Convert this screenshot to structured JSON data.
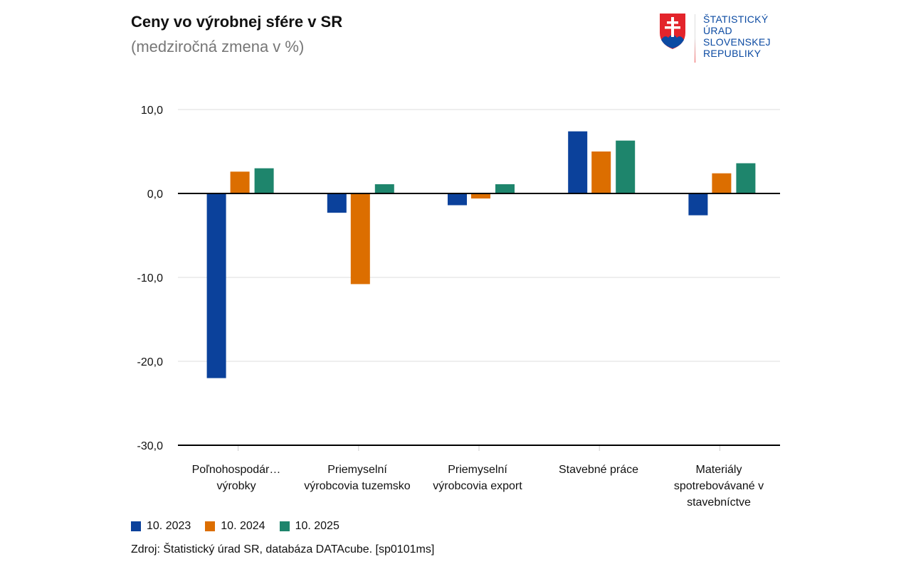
{
  "chart_data": {
    "type": "bar",
    "title": "Ceny vo výrobnej sfére v SR",
    "subtitle": "(medziročná zmena v %)",
    "categories": [
      "Poľnohospodár… výrobky",
      "Priemyselní výrobcovia tuzemsko",
      "Priemyselní výrobcovia export",
      "Stavebné práce",
      "Materiály spotrebovávané v stavebníctve"
    ],
    "series": [
      {
        "name": "10. 2023",
        "color": "#0b419b",
        "values": [
          -22.0,
          -2.3,
          -1.4,
          7.4,
          -2.6
        ]
      },
      {
        "name": "10. 2024",
        "color": "#dc6e00",
        "values": [
          2.6,
          -10.8,
          -0.6,
          5.0,
          2.4
        ]
      },
      {
        "name": "10. 2025",
        "color": "#1e856c",
        "values": [
          3.0,
          1.1,
          1.1,
          6.3,
          3.6
        ]
      }
    ],
    "yticks": [
      "10,0",
      "0,0",
      "-10,0",
      "-20,0",
      "-30,0"
    ],
    "ytick_values": [
      10,
      0,
      -10,
      -20,
      -30
    ],
    "ylim": [
      -30,
      10
    ],
    "grid": true,
    "legend": "bottom-left",
    "source": "Zdroj: Štatistický úrad SR, databáza DATAcube. [sp0101ms]"
  },
  "logo": {
    "lines": [
      "ŠTATISTICKÝ",
      "ÚRAD",
      "SLOVENSKEJ",
      "REPUBLIKY"
    ]
  }
}
